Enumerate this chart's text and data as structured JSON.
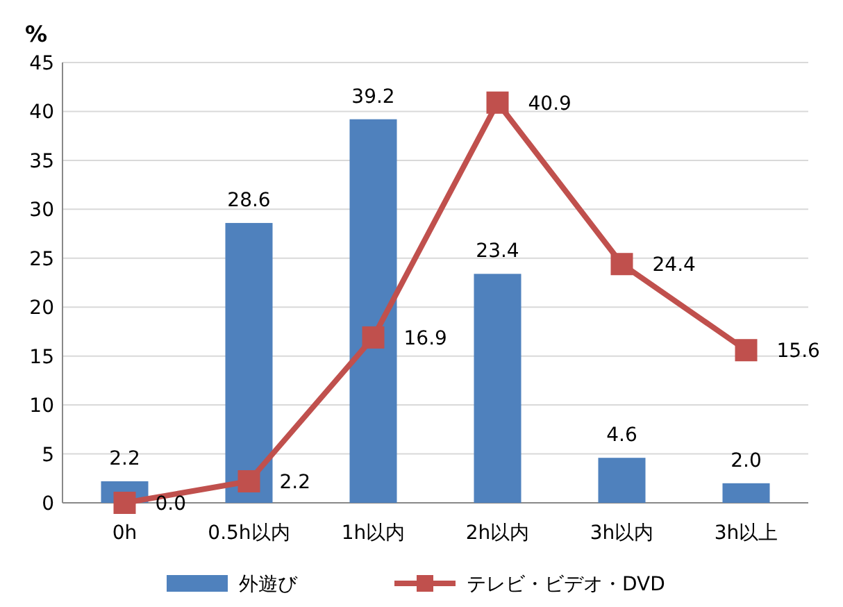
{
  "chart_data": {
    "type": "bar",
    "ylabel": "%",
    "categories": [
      "0h",
      "0.5h以内",
      "1h以内",
      "2h以内",
      "3h以内",
      "3h以上"
    ],
    "series": [
      {
        "name": "外遊び",
        "color": "#4f81bd",
        "values": [
          2.2,
          28.6,
          39.2,
          23.4,
          4.6,
          2.0
        ],
        "value_labels": [
          "2.2",
          "28.6",
          "39.2",
          "23.4",
          "4.6",
          "2.0"
        ]
      },
      {
        "name": "テレビ・ビデオ・DVD",
        "type": "line",
        "color": "#c0504d",
        "marker": "square",
        "values": [
          0.0,
          2.2,
          16.9,
          40.9,
          24.4,
          15.6
        ],
        "value_labels": [
          "0.0",
          "2.2",
          "16.9",
          "40.9",
          "24.4",
          "15.6"
        ]
      }
    ],
    "ylim": [
      0,
      45
    ],
    "yticks": [
      0,
      5,
      10,
      15,
      20,
      25,
      30,
      35,
      40,
      45
    ],
    "grid": "y",
    "legend": "bottom"
  }
}
